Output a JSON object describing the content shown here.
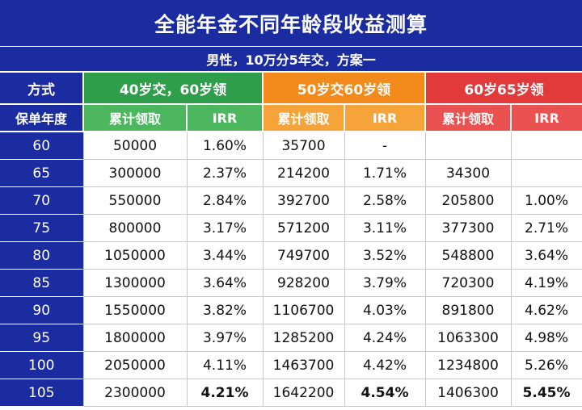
{
  "title": "全能年金不同年龄段收益测算",
  "subtitle": "男性，10万分5年交，方案一",
  "header": {
    "method_label": "方式",
    "year_label": "保单年度",
    "plans": [
      {
        "name": "40岁交，60岁领",
        "cumulative_label": "累计领取",
        "irr_label": "IRR",
        "color_dark": "#2f9e4a",
        "color_light": "#4cb75f"
      },
      {
        "name": "50岁交60岁领",
        "cumulative_label": "累计领取",
        "irr_label": "IRR",
        "color_dark": "#f28a1c",
        "color_light": "#f6a43a"
      },
      {
        "name": "60岁65岁领",
        "cumulative_label": "累计领取",
        "irr_label": "IRR",
        "color_dark": "#e23a3a",
        "color_light": "#ea5252"
      }
    ]
  },
  "rows": [
    {
      "year": "60",
      "p1_cum": "50000",
      "p1_irr": "1.60%",
      "p2_cum": "35700",
      "p2_irr": "-",
      "p3_cum": "",
      "p3_irr": ""
    },
    {
      "year": "65",
      "p1_cum": "300000",
      "p1_irr": "2.37%",
      "p2_cum": "214200",
      "p2_irr": "1.71%",
      "p3_cum": "34300",
      "p3_irr": ""
    },
    {
      "year": "70",
      "p1_cum": "550000",
      "p1_irr": "2.84%",
      "p2_cum": "392700",
      "p2_irr": "2.58%",
      "p3_cum": "205800",
      "p3_irr": "1.00%"
    },
    {
      "year": "75",
      "p1_cum": "800000",
      "p1_irr": "3.17%",
      "p2_cum": "571200",
      "p2_irr": "3.11%",
      "p3_cum": "377300",
      "p3_irr": "2.71%"
    },
    {
      "year": "80",
      "p1_cum": "1050000",
      "p1_irr": "3.44%",
      "p2_cum": "749700",
      "p2_irr": "3.52%",
      "p3_cum": "548800",
      "p3_irr": "3.64%"
    },
    {
      "year": "85",
      "p1_cum": "1300000",
      "p1_irr": "3.64%",
      "p2_cum": "928200",
      "p2_irr": "3.79%",
      "p3_cum": "720300",
      "p3_irr": "4.19%"
    },
    {
      "year": "90",
      "p1_cum": "1550000",
      "p1_irr": "3.82%",
      "p2_cum": "1106700",
      "p2_irr": "4.03%",
      "p3_cum": "891800",
      "p3_irr": "4.62%"
    },
    {
      "year": "95",
      "p1_cum": "1800000",
      "p1_irr": "3.97%",
      "p2_cum": "1285200",
      "p2_irr": "4.24%",
      "p3_cum": "1063300",
      "p3_irr": "4.98%"
    },
    {
      "year": "100",
      "p1_cum": "2050000",
      "p1_irr": "4.11%",
      "p2_cum": "1463700",
      "p2_irr": "4.42%",
      "p3_cum": "1234800",
      "p3_irr": "5.26%"
    },
    {
      "year": "105",
      "p1_cum": "2300000",
      "p1_irr": "4.21%",
      "p2_cum": "1642200",
      "p2_irr": "4.54%",
      "p3_cum": "1406300",
      "p3_irr": "5.45%"
    }
  ],
  "colors": {
    "header_navy": "#1a2ca0"
  }
}
